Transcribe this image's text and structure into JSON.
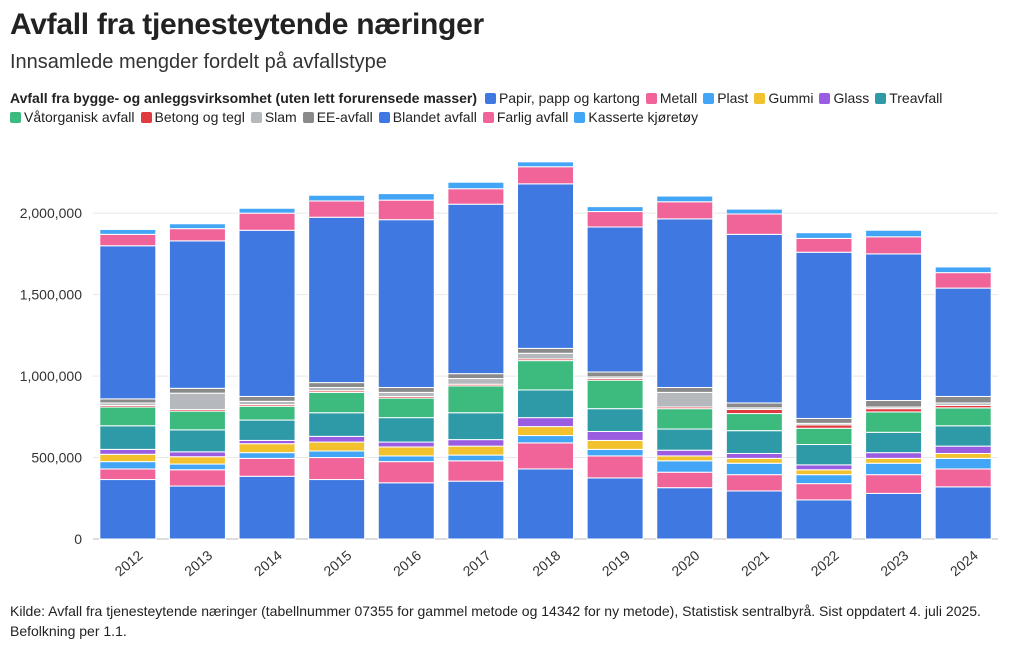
{
  "chart_data": {
    "type": "bar",
    "stacked": true,
    "title": "Avfall fra tjenesteytende næringer",
    "subtitle": "Innsamlede mengder fordelt på avfallstype",
    "legend_heading": "Avfall fra bygge- og anleggsvirksomhet (uten lett forurensede masser)",
    "source": "Kilde: Avfall fra tjenesteytende næringer (tabellnummer 07355 for gammel metode og 14342 for ny metode), Statistisk sentralbyrå. Sist oppdatert 4. juli 2025. Befolkning per 1.1.",
    "xlabel": "",
    "ylabel": "",
    "ylim": [
      0,
      2400000
    ],
    "yticks": [
      0,
      500000,
      1000000,
      1500000,
      2000000
    ],
    "ytick_labels": [
      "0",
      "500,000",
      "1,000,000",
      "1,500,000",
      "2,000,000"
    ],
    "categories": [
      "2012",
      "2013",
      "2014",
      "2015",
      "2016",
      "2017",
      "2018",
      "2019",
      "2020",
      "2021",
      "2022",
      "2023",
      "2024"
    ],
    "series": [
      {
        "name": "Avfall fra bygge- og anleggsvirksomhet (uten lett forurensede masser)",
        "color": "#3f78e0",
        "show_in_legend": false,
        "values": [
          365000,
          325000,
          385000,
          365000,
          345000,
          355000,
          430000,
          375000,
          315000,
          295000,
          240000,
          280000,
          320000
        ]
      },
      {
        "name": "Papir, papp og kartong",
        "color": "#3f78e0",
        "values": [
          0,
          0,
          0,
          0,
          0,
          0,
          0,
          0,
          0,
          0,
          0,
          0,
          0
        ]
      },
      {
        "name": "Metall",
        "color": "#f0649a",
        "values": [
          65000,
          100000,
          110000,
          135000,
          130000,
          125000,
          160000,
          135000,
          95000,
          100000,
          100000,
          115000,
          110000
        ]
      },
      {
        "name": "Plast",
        "color": "#42a5f5",
        "values": [
          45000,
          35000,
          35000,
          40000,
          35000,
          35000,
          45000,
          40000,
          70000,
          70000,
          55000,
          70000,
          65000
        ]
      },
      {
        "name": "Gummi",
        "color": "#f2c12e",
        "values": [
          45000,
          45000,
          55000,
          55000,
          55000,
          55000,
          55000,
          55000,
          30000,
          30000,
          30000,
          30000,
          30000
        ]
      },
      {
        "name": "Glass",
        "color": "#9a5ce0",
        "values": [
          30000,
          30000,
          20000,
          35000,
          30000,
          40000,
          55000,
          55000,
          35000,
          30000,
          30000,
          35000,
          45000
        ]
      },
      {
        "name": "Treavfall",
        "color": "#2e9aa8",
        "values": [
          145000,
          135000,
          125000,
          145000,
          150000,
          165000,
          170000,
          140000,
          130000,
          140000,
          125000,
          125000,
          125000
        ]
      },
      {
        "name": "Våtorganisk avfall",
        "color": "#3dba7e",
        "values": [
          115000,
          115000,
          85000,
          125000,
          120000,
          165000,
          180000,
          175000,
          125000,
          105000,
          100000,
          125000,
          110000
        ]
      },
      {
        "name": "Betong og tegl",
        "color": "#e0393e",
        "values": [
          10000,
          10000,
          10000,
          10000,
          10000,
          10000,
          10000,
          10000,
          10000,
          25000,
          20000,
          20000,
          15000
        ]
      },
      {
        "name": "Slam",
        "color": "#b5b9bd",
        "values": [
          15000,
          100000,
          20000,
          20000,
          25000,
          35000,
          35000,
          10000,
          90000,
          10000,
          10000,
          10000,
          15000
        ]
      },
      {
        "name": "EE-avfall",
        "color": "#8a8a8a",
        "values": [
          25000,
          30000,
          30000,
          30000,
          30000,
          30000,
          30000,
          30000,
          30000,
          30000,
          30000,
          40000,
          40000
        ]
      },
      {
        "name": "Blandet avfall",
        "color": "#3f78e0",
        "values": [
          940000,
          905000,
          1020000,
          1015000,
          1030000,
          1040000,
          1010000,
          890000,
          1035000,
          1035000,
          1020000,
          900000,
          665000
        ]
      },
      {
        "name": "Farlig avfall",
        "color": "#f0649a",
        "values": [
          70000,
          75000,
          105000,
          100000,
          120000,
          95000,
          105000,
          95000,
          105000,
          125000,
          85000,
          105000,
          95000
        ]
      },
      {
        "name": "Kasserte kjøretøy",
        "color": "#42a5f5",
        "values": [
          30000,
          30000,
          30000,
          35000,
          40000,
          40000,
          30000,
          30000,
          35000,
          30000,
          35000,
          40000,
          35000
        ]
      }
    ]
  }
}
